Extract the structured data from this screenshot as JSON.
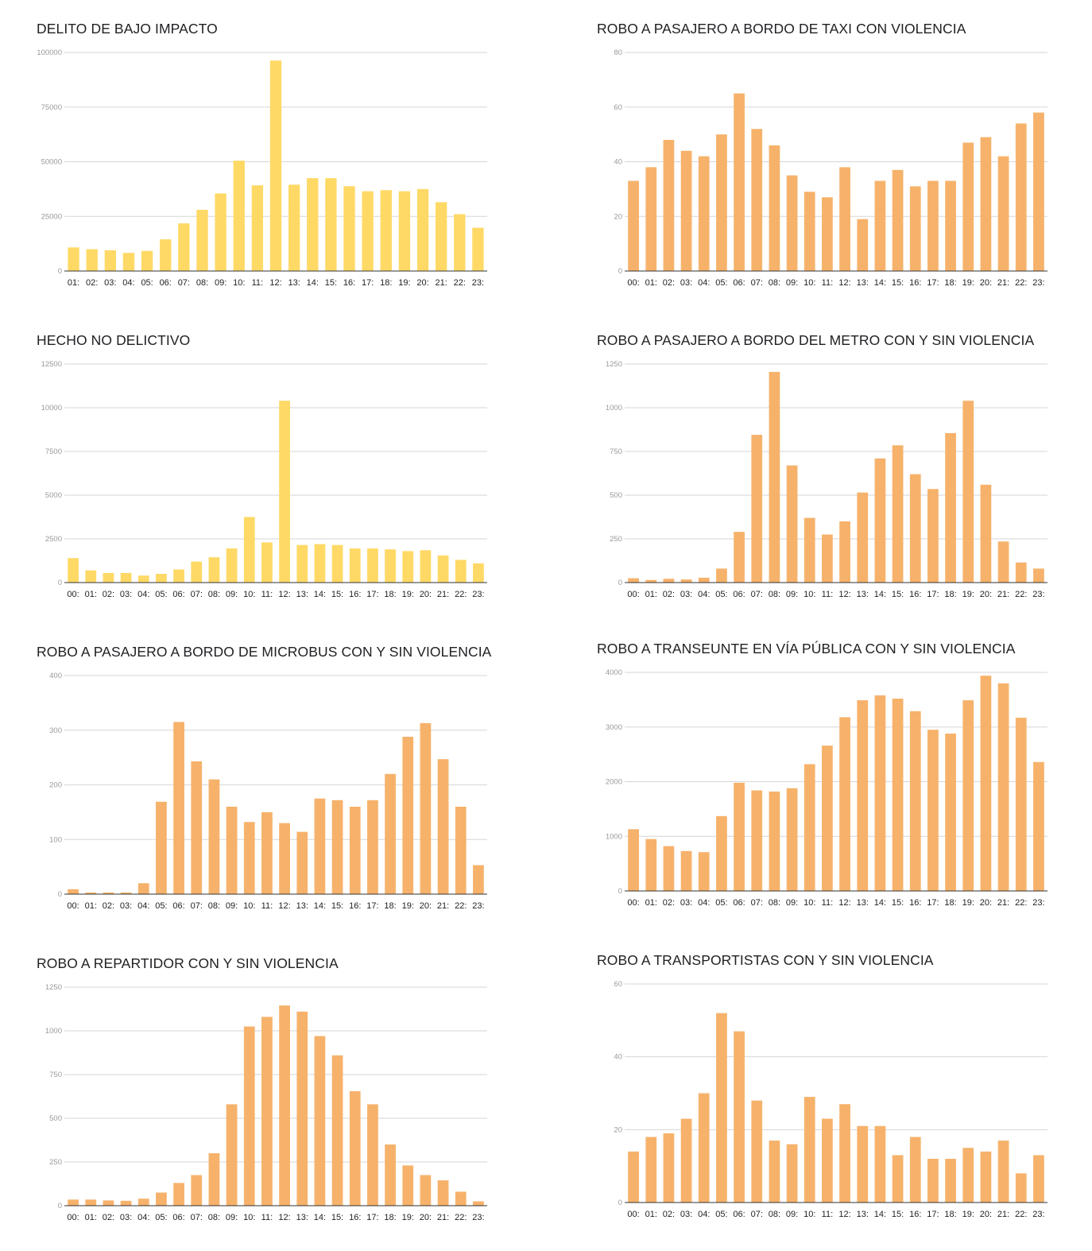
{
  "colors": {
    "yellow": "#FFD966",
    "orange": "#F6B26B"
  },
  "charts": [
    {
      "title": "DELITO DE BAJO IMPACTO",
      "color": "yellow",
      "chart_data": {
        "type": "bar",
        "categories": [
          "01:",
          "02:",
          "03:",
          "04:",
          "05:",
          "06:",
          "07:",
          "08:",
          "09:",
          "10:",
          "11:",
          "12:",
          "13:",
          "14:",
          "15:",
          "16:",
          "17:",
          "18:",
          "19:",
          "20:",
          "21:",
          "22:",
          "23:"
        ],
        "values": [
          10800,
          10000,
          9500,
          8300,
          9200,
          14500,
          21800,
          28000,
          35500,
          50500,
          39200,
          96300,
          39500,
          42500,
          42500,
          38800,
          36500,
          37000,
          36500,
          37500,
          31500,
          26000,
          19800
        ],
        "yticks": [
          0,
          25000,
          50000,
          75000,
          100000
        ],
        "ylim": [
          0,
          100000
        ]
      }
    },
    {
      "title": "ROBO A PASAJERO A BORDO DE TAXI CON VIOLENCIA",
      "color": "orange",
      "chart_data": {
        "type": "bar",
        "categories": [
          "00:",
          "01:",
          "02:",
          "03:",
          "04:",
          "05:",
          "06:",
          "07:",
          "08:",
          "09:",
          "10:",
          "11:",
          "12:",
          "13:",
          "14:",
          "15:",
          "16:",
          "17:",
          "18:",
          "19:",
          "20:",
          "21:",
          "22:",
          "23:"
        ],
        "values": [
          33,
          38,
          48,
          44,
          42,
          50,
          65,
          52,
          46,
          35,
          29,
          27,
          38,
          19,
          33,
          37,
          31,
          33,
          33,
          47,
          49,
          42,
          54,
          58
        ],
        "yticks": [
          0,
          20,
          40,
          60,
          80
        ],
        "ylim": [
          0,
          80
        ]
      }
    },
    {
      "title": "HECHO NO DELICTIVO",
      "color": "yellow",
      "chart_data": {
        "type": "bar",
        "categories": [
          "00:",
          "01:",
          "02:",
          "03:",
          "04:",
          "05:",
          "06:",
          "07:",
          "08:",
          "09:",
          "10:",
          "11:",
          "12:",
          "13:",
          "14:",
          "15:",
          "16:",
          "17:",
          "18:",
          "19:",
          "20:",
          "21:",
          "22:",
          "23:"
        ],
        "values": [
          1400,
          700,
          550,
          550,
          400,
          500,
          750,
          1200,
          1450,
          1950,
          3750,
          2300,
          10400,
          2150,
          2200,
          2150,
          1950,
          1950,
          1900,
          1800,
          1850,
          1550,
          1300,
          1100
        ],
        "yticks": [
          0,
          2500,
          5000,
          7500,
          10000,
          12500
        ],
        "ylim": [
          0,
          12500
        ]
      }
    },
    {
      "title": "ROBO A PASAJERO A BORDO DEL METRO CON Y SIN VIOLENCIA",
      "color": "orange",
      "chart_data": {
        "type": "bar",
        "categories": [
          "00:",
          "01:",
          "02:",
          "03:",
          "04:",
          "05:",
          "06:",
          "07:",
          "08:",
          "09:",
          "10:",
          "11:",
          "12:",
          "13:",
          "14:",
          "15:",
          "16:",
          "17:",
          "18:",
          "19:",
          "20:",
          "21:",
          "22:",
          "23:"
        ],
        "values": [
          25,
          15,
          22,
          18,
          28,
          80,
          290,
          845,
          1205,
          670,
          370,
          275,
          350,
          515,
          710,
          785,
          620,
          535,
          855,
          1040,
          560,
          235,
          115,
          80
        ],
        "yticks": [
          0,
          250,
          500,
          750,
          1000,
          1250
        ],
        "ylim": [
          0,
          1250
        ]
      }
    },
    {
      "title": "ROBO A PASAJERO A BORDO DE MICROBUS CON Y SIN VIOLENCIA",
      "color": "orange",
      "chart_data": {
        "type": "bar",
        "categories": [
          "00:",
          "01:",
          "02:",
          "03:",
          "04:",
          "05:",
          "06:",
          "07:",
          "08:",
          "09:",
          "10:",
          "11:",
          "12:",
          "13:",
          "14:",
          "15:",
          "16:",
          "17:",
          "18:",
          "19:",
          "20:",
          "21:",
          "22:",
          "23:"
        ],
        "values": [
          9,
          3,
          3,
          3,
          20,
          169,
          315,
          243,
          210,
          160,
          132,
          150,
          130,
          114,
          175,
          172,
          160,
          172,
          220,
          288,
          313,
          247,
          160,
          53
        ],
        "yticks": [
          0,
          100,
          200,
          300,
          400
        ],
        "ylim": [
          0,
          400
        ]
      }
    },
    {
      "title": "ROBO A TRANSEUNTE EN VÍA PÚBLICA CON Y SIN VIOLENCIA",
      "color": "orange",
      "chart_data": {
        "type": "bar",
        "categories": [
          "00:",
          "01:",
          "02:",
          "03:",
          "04:",
          "05:",
          "06:",
          "07:",
          "08:",
          "09:",
          "10:",
          "11:",
          "12:",
          "13:",
          "14:",
          "15:",
          "16:",
          "17:",
          "18:",
          "19:",
          "20:",
          "21:",
          "22:",
          "23:"
        ],
        "values": [
          1130,
          950,
          820,
          730,
          710,
          1370,
          1980,
          1840,
          1820,
          1880,
          2320,
          2660,
          3180,
          3490,
          3580,
          3520,
          3290,
          2950,
          2880,
          3490,
          3940,
          3800,
          3170,
          2360
        ],
        "yticks": [
          0,
          1000,
          2000,
          3000,
          4000
        ],
        "ylim": [
          0,
          4000
        ]
      }
    },
    {
      "title": "ROBO A REPARTIDOR CON Y SIN VIOLENCIA",
      "color": "orange",
      "chart_data": {
        "type": "bar",
        "categories": [
          "00:",
          "01:",
          "02:",
          "03:",
          "04:",
          "05:",
          "06:",
          "07:",
          "08:",
          "09:",
          "10:",
          "11:",
          "12:",
          "13:",
          "14:",
          "15:",
          "16:",
          "17:",
          "18:",
          "19:",
          "20:",
          "21:",
          "22:",
          "23:"
        ],
        "values": [
          35,
          35,
          30,
          28,
          40,
          75,
          130,
          175,
          300,
          580,
          1025,
          1080,
          1145,
          1110,
          970,
          860,
          655,
          580,
          350,
          230,
          175,
          145,
          80,
          25
        ],
        "yticks": [
          0,
          250,
          500,
          750,
          1000,
          1250
        ],
        "ylim": [
          0,
          1250
        ]
      }
    },
    {
      "title": "ROBO A TRANSPORTISTAS CON Y SIN VIOLENCIA",
      "color": "orange",
      "chart_data": {
        "type": "bar",
        "categories": [
          "00:",
          "01:",
          "02:",
          "03:",
          "04:",
          "05:",
          "06:",
          "07:",
          "08:",
          "09:",
          "10:",
          "11:",
          "12:",
          "13:",
          "14:",
          "15:",
          "16:",
          "17:",
          "18:",
          "19:",
          "20:",
          "21:",
          "22:",
          "23:"
        ],
        "values": [
          14,
          18,
          19,
          23,
          30,
          52,
          47,
          28,
          17,
          16,
          29,
          23,
          27,
          21,
          21,
          13,
          18,
          12,
          12,
          15,
          14,
          17,
          8,
          13
        ],
        "yticks": [
          0,
          20,
          40,
          60
        ],
        "ylim": [
          0,
          60
        ]
      }
    }
  ]
}
